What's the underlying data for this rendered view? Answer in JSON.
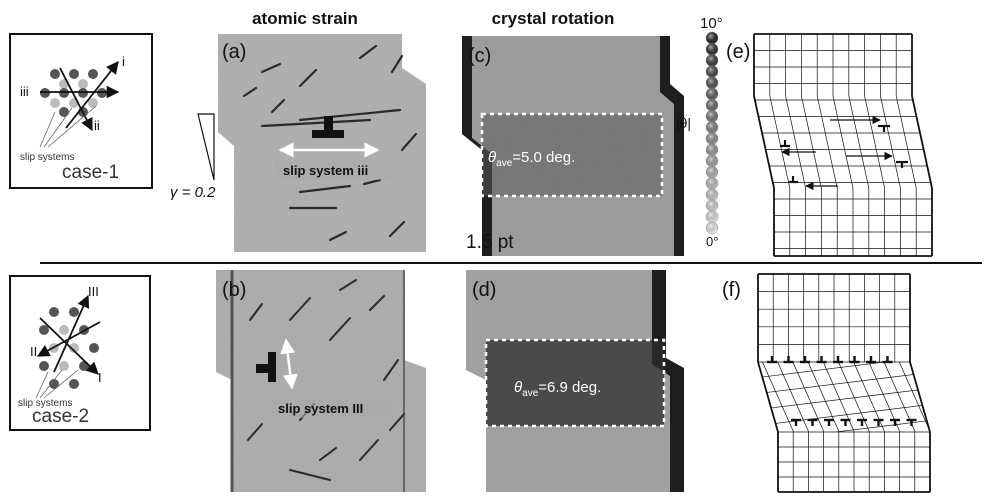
{
  "headers": {
    "atomic_strain": "atomic strain",
    "crystal_rotation": "crystal rotation"
  },
  "panels": {
    "a": "(a)",
    "b": "(b)",
    "c": "(c)",
    "d": "(d)",
    "e": "(e)",
    "f": "(f)"
  },
  "case1": {
    "label": "case-1",
    "roman_i": "i",
    "roman_ii": "ii",
    "roman_iii": "iii",
    "slip_systems": "slip systems"
  },
  "case2": {
    "label": "case-2",
    "roman_I": "I",
    "roman_II": "II",
    "roman_III": "III",
    "slip_systems": "slip systems"
  },
  "shear": {
    "gamma_label": "γ = 0.2"
  },
  "slip_labels": {
    "upper": "slip system iii",
    "lower": "slip system III"
  },
  "rotation": {
    "upper_theta": "θ",
    "upper_sub": "ave",
    "upper_value": "=5.0 deg.",
    "lower_theta": "θ",
    "lower_sub": "ave",
    "lower_value": "=6.9 deg."
  },
  "colorbar": {
    "max": "10°",
    "min": "0°",
    "axis_label": "|θ|",
    "stroke_note": "1.5 pt"
  },
  "colors": {
    "ink": "#111111",
    "panel_gray": "#9a9a9a",
    "dark_band": "#3a3a3a"
  }
}
